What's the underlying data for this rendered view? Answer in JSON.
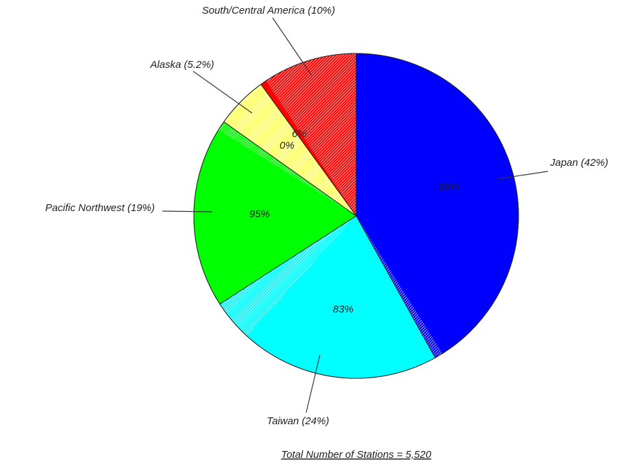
{
  "chart_data": {
    "type": "pie",
    "categories": [
      "Japan",
      "Taiwan",
      "Pacific Northwest",
      "Alaska",
      "South/Central America"
    ],
    "values": [
      42,
      24,
      19,
      5.2,
      10
    ],
    "value_labels": [
      "Japan (42%)",
      "Taiwan (24%)",
      "Pacific Northwest (19%)",
      "Alaska (5.2%)",
      "South/Central America (10%)"
    ],
    "colors": [
      "#0000ff",
      "#00ffff",
      "#00ff00",
      "#ffff66",
      "#ff0000"
    ],
    "inner_values": [
      98,
      83,
      95,
      0,
      6
    ],
    "inner_value_labels": [
      "98%",
      "83%",
      "95%",
      "0%",
      "6%"
    ],
    "footnote": "Total Number of Stations = 5,520"
  }
}
